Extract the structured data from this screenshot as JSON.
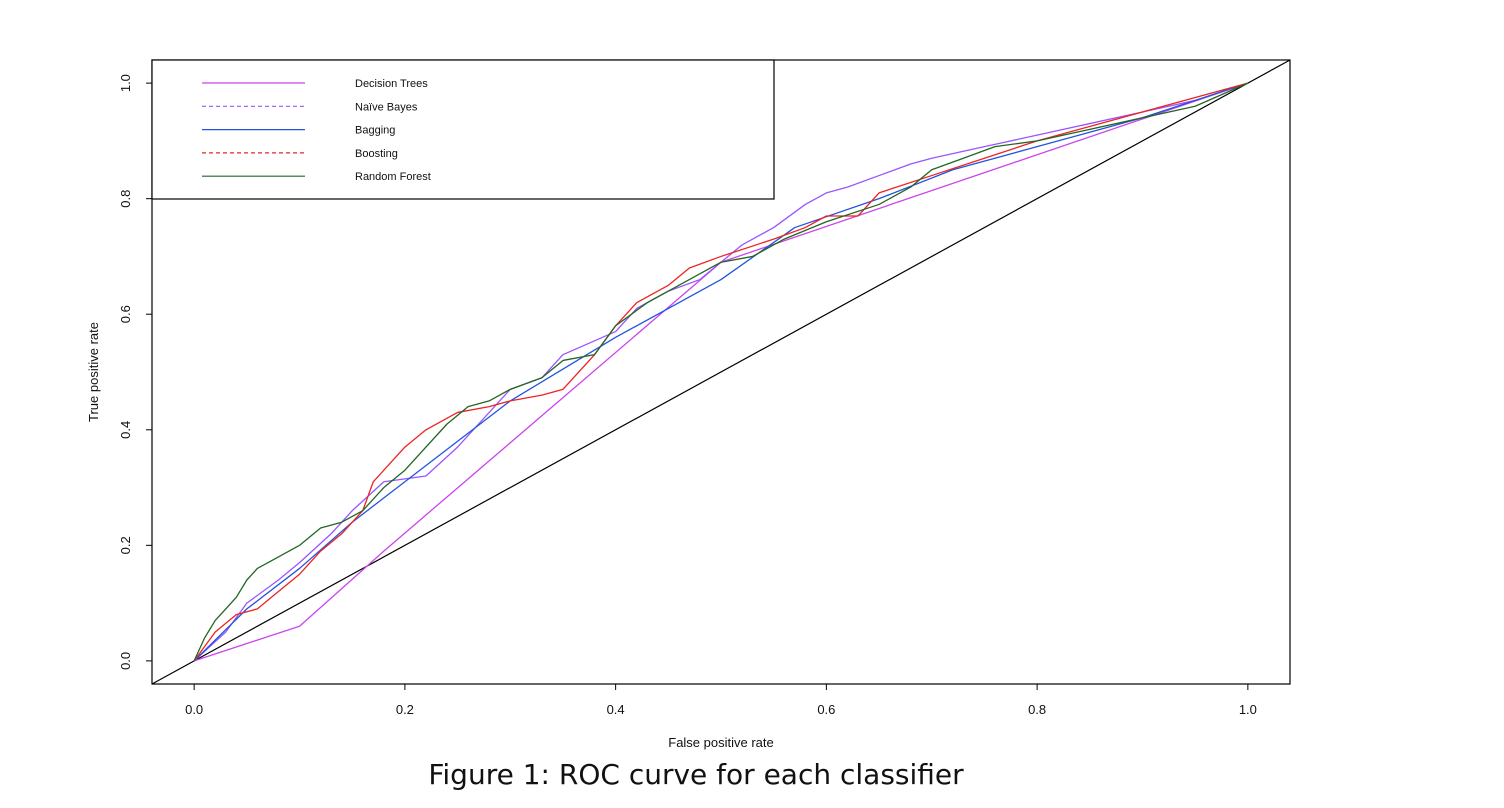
{
  "figure_caption": "Figure 1: ROC curve for each classifier",
  "chart_data": {
    "type": "line",
    "title": "",
    "xlabel": "False positive rate",
    "ylabel": "True positive rate",
    "xlim": [
      -0.04,
      1.04
    ],
    "ylim": [
      -0.04,
      1.04
    ],
    "x_ticks": [
      0.0,
      0.2,
      0.4,
      0.6,
      0.8,
      1.0
    ],
    "y_ticks": [
      0.0,
      0.2,
      0.4,
      0.6,
      0.8,
      1.0
    ],
    "x_tick_labels": [
      "0.0",
      "0.2",
      "0.4",
      "0.6",
      "0.8",
      "1.0"
    ],
    "y_tick_labels": [
      "0.0",
      "0.2",
      "0.4",
      "0.6",
      "0.8",
      "1.0"
    ],
    "grid": false,
    "legend_position": "top-left",
    "diagonal": {
      "x": [
        -0.04,
        1.04
      ],
      "y": [
        -0.04,
        1.04
      ],
      "color": "#000000"
    },
    "series": [
      {
        "name": "Decision Trees",
        "color": "#cc44ee",
        "dash": false,
        "x": [
          0.0,
          0.1,
          0.18,
          0.5,
          1.0
        ],
        "y": [
          0.0,
          0.06,
          0.19,
          0.69,
          1.0
        ]
      },
      {
        "name": "Naïve Bayes",
        "color": "#9955ff",
        "dash": true,
        "x": [
          0.0,
          0.03,
          0.05,
          0.08,
          0.1,
          0.13,
          0.15,
          0.18,
          0.22,
          0.25,
          0.28,
          0.3,
          0.33,
          0.35,
          0.4,
          0.42,
          0.45,
          0.48,
          0.52,
          0.55,
          0.58,
          0.6,
          0.62,
          0.65,
          0.68,
          0.7,
          0.75,
          0.8,
          0.85,
          0.9,
          0.95,
          1.0
        ],
        "y": [
          0.0,
          0.05,
          0.1,
          0.14,
          0.17,
          0.22,
          0.26,
          0.31,
          0.32,
          0.37,
          0.43,
          0.47,
          0.49,
          0.53,
          0.57,
          0.61,
          0.64,
          0.66,
          0.72,
          0.75,
          0.79,
          0.81,
          0.82,
          0.84,
          0.86,
          0.87,
          0.89,
          0.91,
          0.93,
          0.95,
          0.97,
          1.0
        ]
      },
      {
        "name": "Bagging",
        "color": "#2255dd",
        "dash": false,
        "x": [
          0.0,
          0.05,
          0.1,
          0.15,
          0.2,
          0.3,
          0.4,
          0.5,
          0.57,
          0.65,
          0.72,
          0.8,
          0.9,
          1.0
        ],
        "y": [
          0.0,
          0.09,
          0.16,
          0.24,
          0.31,
          0.45,
          0.56,
          0.66,
          0.75,
          0.8,
          0.85,
          0.89,
          0.94,
          1.0
        ]
      },
      {
        "name": "Boosting",
        "color": "#ee2222",
        "dash": true,
        "x": [
          0.0,
          0.02,
          0.04,
          0.06,
          0.08,
          0.1,
          0.12,
          0.14,
          0.16,
          0.17,
          0.18,
          0.2,
          0.22,
          0.25,
          0.28,
          0.3,
          0.33,
          0.35,
          0.38,
          0.4,
          0.42,
          0.45,
          0.47,
          0.5,
          0.55,
          0.58,
          0.6,
          0.63,
          0.65,
          0.7,
          0.75,
          0.8,
          0.9,
          1.0
        ],
        "y": [
          0.0,
          0.05,
          0.08,
          0.09,
          0.12,
          0.15,
          0.19,
          0.22,
          0.26,
          0.31,
          0.33,
          0.37,
          0.4,
          0.43,
          0.44,
          0.45,
          0.46,
          0.47,
          0.53,
          0.58,
          0.62,
          0.65,
          0.68,
          0.7,
          0.73,
          0.75,
          0.77,
          0.77,
          0.81,
          0.84,
          0.87,
          0.9,
          0.95,
          1.0
        ]
      },
      {
        "name": "Random Forest",
        "color": "#226622",
        "dash": false,
        "x": [
          0.0,
          0.01,
          0.02,
          0.03,
          0.04,
          0.05,
          0.06,
          0.08,
          0.1,
          0.12,
          0.14,
          0.16,
          0.18,
          0.2,
          0.22,
          0.24,
          0.26,
          0.28,
          0.3,
          0.33,
          0.35,
          0.38,
          0.4,
          0.43,
          0.46,
          0.5,
          0.53,
          0.56,
          0.6,
          0.65,
          0.68,
          0.7,
          0.73,
          0.76,
          0.8,
          0.85,
          0.9,
          0.95,
          1.0
        ],
        "y": [
          0.0,
          0.04,
          0.07,
          0.09,
          0.11,
          0.14,
          0.16,
          0.18,
          0.2,
          0.23,
          0.24,
          0.26,
          0.3,
          0.33,
          0.37,
          0.41,
          0.44,
          0.45,
          0.47,
          0.49,
          0.52,
          0.53,
          0.58,
          0.62,
          0.65,
          0.69,
          0.7,
          0.73,
          0.76,
          0.79,
          0.82,
          0.85,
          0.87,
          0.89,
          0.9,
          0.92,
          0.94,
          0.96,
          1.0
        ]
      }
    ]
  }
}
